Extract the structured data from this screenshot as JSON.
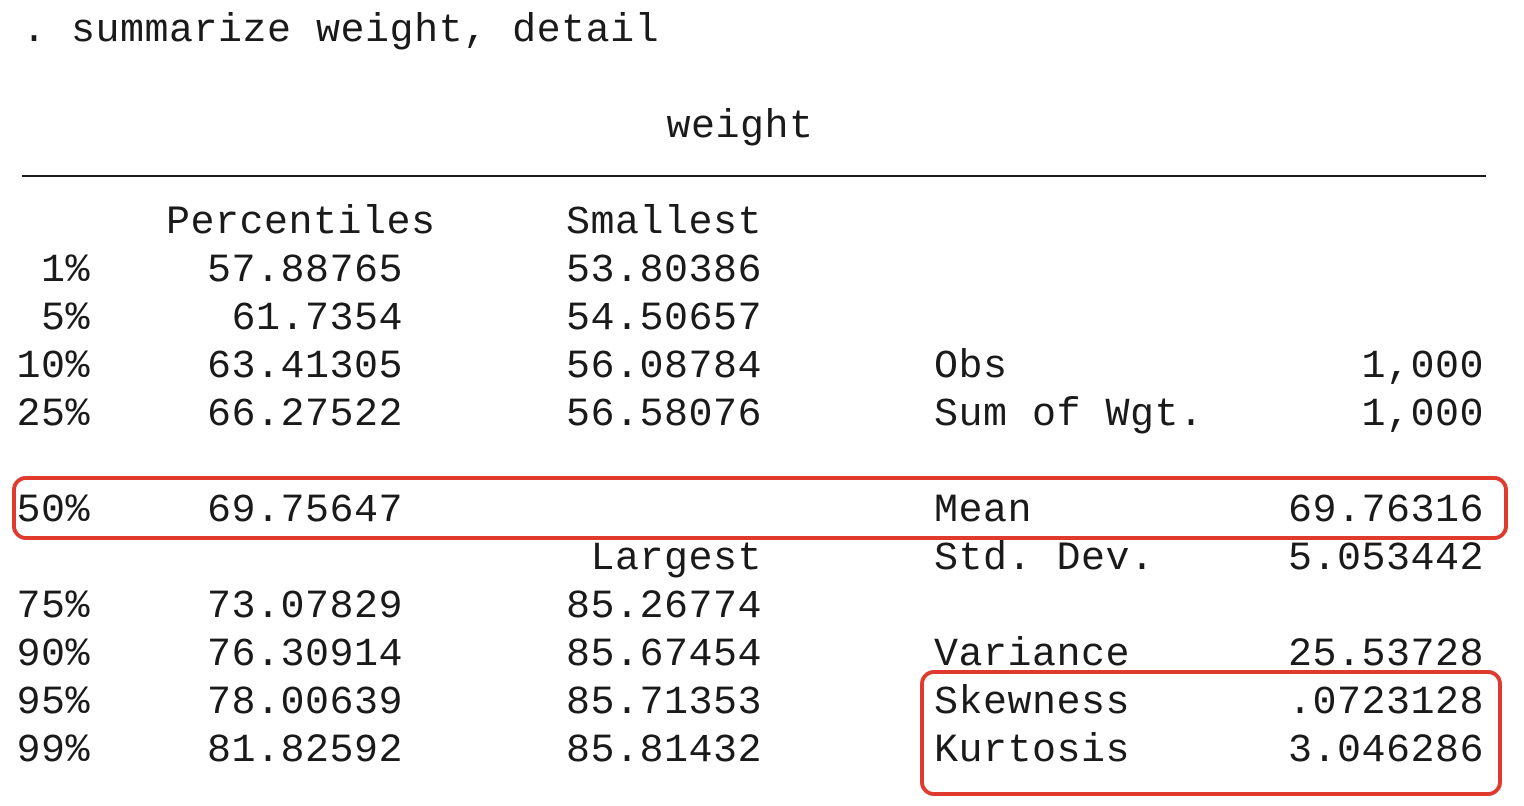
{
  "command": ". summarize weight, detail",
  "variable": "weight",
  "headers": {
    "percentiles": "Percentiles",
    "smallest": "Smallest",
    "largest": "Largest"
  },
  "rows": [
    {
      "pct": "1%",
      "value": "57.88765",
      "extreme": "53.80386",
      "stat_label": "",
      "stat_value": ""
    },
    {
      "pct": "5%",
      "value": "61.7354",
      "extreme": "54.50657",
      "stat_label": "",
      "stat_value": ""
    },
    {
      "pct": "10%",
      "value": "63.41305",
      "extreme": "56.08784",
      "stat_label": "Obs",
      "stat_value": "1,000"
    },
    {
      "pct": "25%",
      "value": "66.27522",
      "extreme": "56.58076",
      "stat_label": "Sum of Wgt.",
      "stat_value": "1,000"
    },
    {
      "pct": "50%",
      "value": "69.75647",
      "extreme": "",
      "stat_label": "Mean",
      "stat_value": "69.76316"
    },
    {
      "pct": "",
      "value": "",
      "extreme": "",
      "stat_label": "Std. Dev.",
      "stat_value": "5.053442"
    },
    {
      "pct": "75%",
      "value": "73.07829",
      "extreme": "85.26774",
      "stat_label": "",
      "stat_value": ""
    },
    {
      "pct": "90%",
      "value": "76.30914",
      "extreme": "85.67454",
      "stat_label": "Variance",
      "stat_value": "25.53728"
    },
    {
      "pct": "95%",
      "value": "78.00639",
      "extreme": "85.71353",
      "stat_label": "Skewness",
      "stat_value": ".0723128"
    },
    {
      "pct": "99%",
      "value": "81.82592",
      "extreme": "85.81432",
      "stat_label": "Kurtosis",
      "stat_value": "3.046286"
    }
  ],
  "highlight_color": "#e0392d"
}
